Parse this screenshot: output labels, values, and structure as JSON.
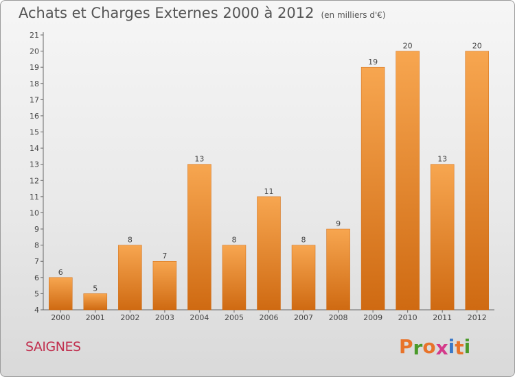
{
  "header": {
    "title": "Achats et Charges Externes 2000 à 2012",
    "subtitle": "(en milliers d'€)"
  },
  "footer": {
    "commune": "SAIGNES",
    "logo": "Proxiti"
  },
  "colors": {
    "bar_light": "#f7a650",
    "bar_dark": "#cf6a12",
    "logo_letters": [
      "#e8732a",
      "#4a9a2a",
      "#e8732a",
      "#d43a8a",
      "#3a78c8",
      "#e8732a",
      "#4a9a2a"
    ]
  },
  "chart_data": {
    "type": "bar",
    "title": "Achats et Charges Externes 2000 à 2012",
    "subtitle": "(en milliers d'€)",
    "categories": [
      "2000",
      "2001",
      "2002",
      "2003",
      "2004",
      "2005",
      "2006",
      "2007",
      "2008",
      "2009",
      "2010",
      "2011",
      "2012"
    ],
    "values": [
      6,
      5,
      8,
      7,
      13,
      8,
      11,
      8,
      9,
      19,
      20,
      13,
      20
    ],
    "data_labels": [
      "6",
      "5",
      "8",
      "7",
      "13",
      "8",
      "11",
      "8",
      "9",
      "19",
      "20",
      "13",
      "20"
    ],
    "ylim": [
      4,
      21
    ],
    "yticks": [
      "4",
      "5",
      "6",
      "7",
      "8",
      "9",
      "10",
      "11",
      "12",
      "13",
      "14",
      "15",
      "16",
      "17",
      "18",
      "19",
      "20",
      "21"
    ],
    "grid": false,
    "legend": "none"
  }
}
